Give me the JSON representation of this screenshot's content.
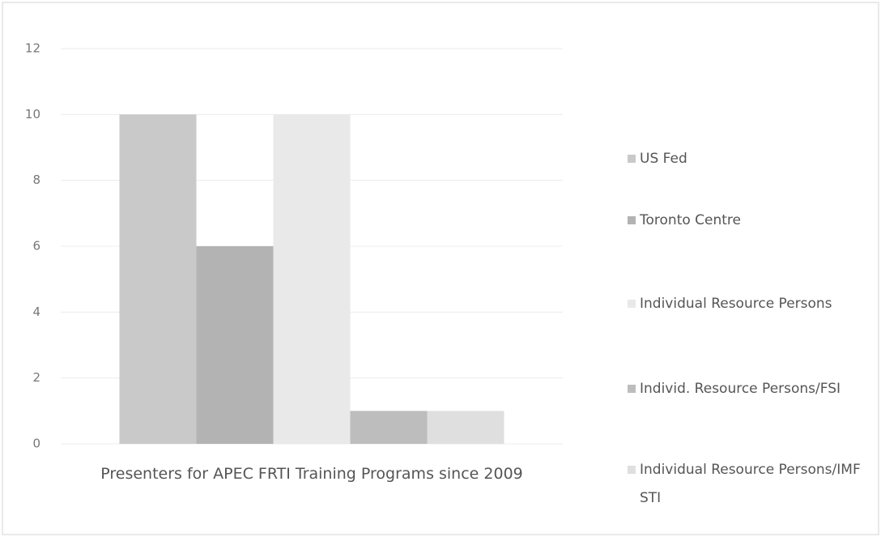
{
  "chart_data": {
    "type": "bar",
    "categories": [
      "Presenters for APEC FRTI Training Programs since 2009"
    ],
    "series": [
      {
        "name": "US Fed",
        "color": "#c9c9c9",
        "values": [
          10
        ]
      },
      {
        "name": "Toronto Centre",
        "color": "#b3b3b3",
        "values": [
          6
        ]
      },
      {
        "name": "Individual Resource Persons",
        "color": "#e9e9e9",
        "values": [
          10
        ]
      },
      {
        "name": "Individ. Resource Persons/FSI",
        "color": "#bdbdbd",
        "values": [
          1
        ]
      },
      {
        "name": "Individual Resource Persons/IMF STI",
        "color": "#dfdfdf",
        "values": [
          1
        ]
      }
    ],
    "ylim": [
      0,
      12
    ],
    "yticks": [
      0,
      2,
      4,
      6,
      8,
      10,
      12
    ],
    "grid": true,
    "legend": "right"
  }
}
